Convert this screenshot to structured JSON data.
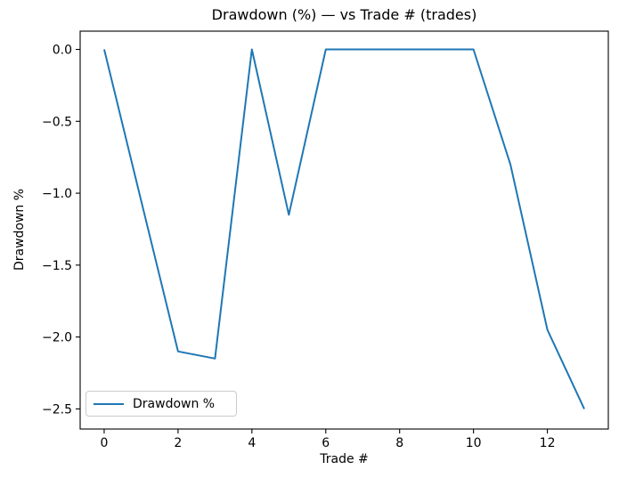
{
  "chart_data": {
    "type": "line",
    "title": "Drawdown (%) — vs Trade # (trades)",
    "xlabel": "Trade #",
    "ylabel": "Drawdown %",
    "x": [
      0,
      1,
      2,
      3,
      4,
      5,
      6,
      7,
      8,
      9,
      10,
      11,
      12,
      13
    ],
    "series": [
      {
        "name": "Drawdown %",
        "color": "#1f77b4",
        "values": [
          0,
          -1.05,
          -2.1,
          -2.15,
          0,
          -1.15,
          0,
          0,
          0,
          0,
          0,
          -0.8,
          -1.95,
          -2.5
        ]
      }
    ],
    "xticks": {
      "values": [
        0,
        2,
        4,
        6,
        8,
        10,
        12
      ],
      "labels": [
        "0",
        "2",
        "4",
        "6",
        "8",
        "10",
        "12"
      ]
    },
    "yticks": {
      "values": [
        0,
        -0.5,
        -1.0,
        -1.5,
        -2.0,
        -2.5
      ],
      "labels": [
        "0.0",
        "−0.5",
        "−1.0",
        "−1.5",
        "−2.0",
        "−2.5"
      ]
    },
    "xlim": [
      -0.65,
      13.65
    ],
    "ylim": [
      -2.64,
      0.127
    ],
    "grid": false,
    "legend": {
      "position": "lower left",
      "entries": [
        "Drawdown %"
      ]
    },
    "axis_color": "#000000",
    "background_color": "#ffffff"
  }
}
